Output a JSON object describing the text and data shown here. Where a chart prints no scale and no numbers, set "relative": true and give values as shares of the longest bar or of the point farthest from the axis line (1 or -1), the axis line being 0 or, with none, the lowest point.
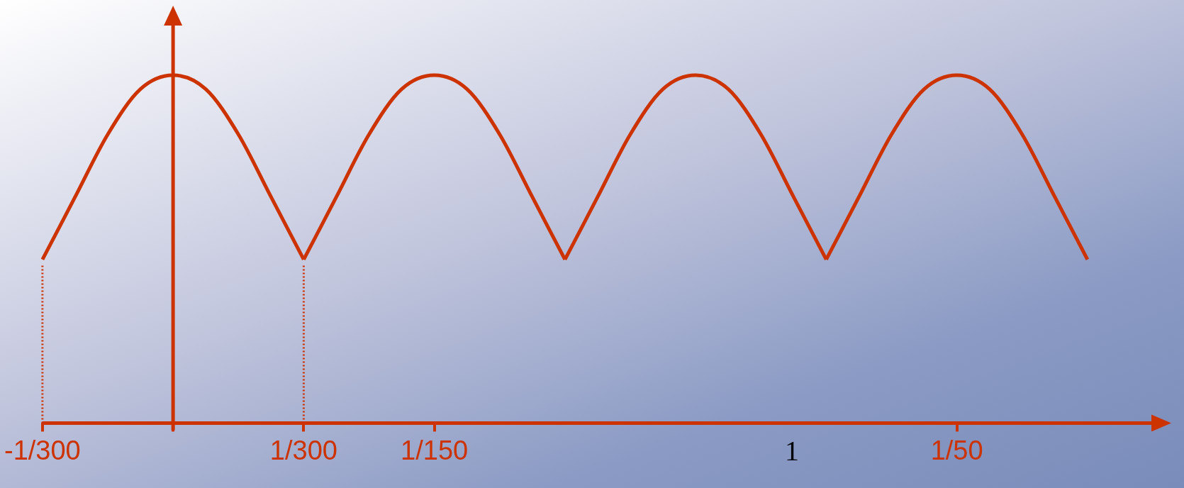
{
  "chart_data": {
    "type": "line",
    "relative": true,
    "categories": [
      "-1/300",
      null,
      null,
      null,
      null,
      null,
      null,
      null,
      "1/300",
      null,
      null,
      null,
      "1/150",
      null,
      null,
      null,
      null,
      null,
      null,
      null,
      null,
      null,
      null,
      null,
      null,
      null,
      null,
      null,
      "1/50",
      null,
      null,
      null,
      null,
      null,
      null
    ],
    "series": [
      {
        "color": "#cc3300",
        "values": [
          0.47,
          0.65,
          0.83,
          0.96,
          1,
          0.96,
          0.83,
          0.65,
          0.47,
          null,
          null,
          null,
          null,
          null,
          null,
          null,
          null,
          null,
          null,
          null,
          null,
          null,
          null,
          null,
          null,
          null,
          null,
          null,
          null,
          null,
          null,
          null,
          null,
          null,
          null
        ]
      },
      {
        "color": "#cc3300",
        "values": [
          null,
          null,
          null,
          null,
          null,
          null,
          null,
          null,
          0.47,
          0.65,
          0.83,
          0.96,
          1,
          0.96,
          0.83,
          0.65,
          0.47,
          null,
          null,
          null,
          null,
          null,
          null,
          null,
          null,
          null,
          null,
          null,
          null,
          null,
          null,
          null,
          null,
          null,
          null
        ]
      },
      {
        "color": "#cc3300",
        "values": [
          null,
          null,
          null,
          null,
          null,
          null,
          null,
          null,
          null,
          null,
          null,
          null,
          null,
          null,
          null,
          null,
          0.47,
          0.65,
          0.83,
          0.96,
          1,
          0.96,
          0.83,
          0.65,
          0.47,
          null,
          null,
          null,
          null,
          null,
          null,
          null,
          null,
          null,
          null
        ]
      },
      {
        "color": "#cc3300",
        "values": [
          null,
          null,
          null,
          null,
          null,
          null,
          null,
          null,
          null,
          null,
          null,
          null,
          null,
          null,
          null,
          null,
          null,
          null,
          null,
          null,
          null,
          null,
          null,
          null,
          0.47,
          0.65,
          0.83,
          0.96,
          1,
          0.96,
          0.83,
          0.65,
          0.47,
          null,
          null
        ]
      }
    ],
    "ref_lines": [
      {
        "axis": "x",
        "value": "-1/300",
        "color": "#cc3300",
        "line_style": "dotted"
      },
      {
        "axis": "x",
        "value": "1/300",
        "color": "#cc3300",
        "line_style": "dotted"
      }
    ],
    "annotations": [
      "1"
    ],
    "grid": false,
    "legend": false
  }
}
